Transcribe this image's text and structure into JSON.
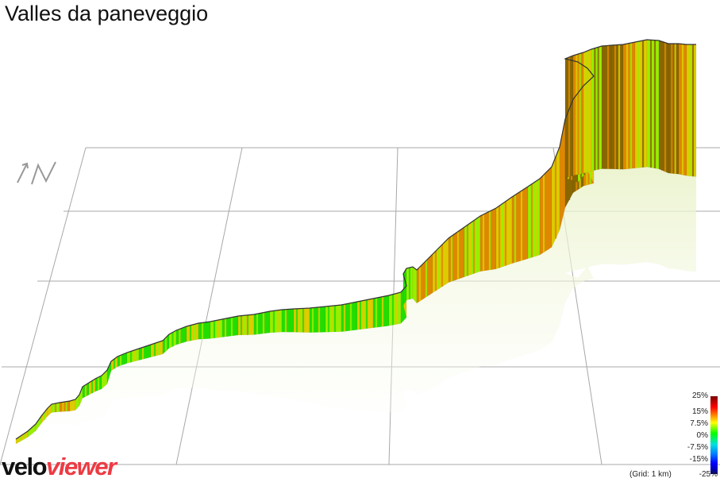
{
  "title": "Valles da paneveggio",
  "logo": {
    "part1": "velo",
    "part2": "viewer"
  },
  "gradient_scale": {
    "labels": [
      "25%",
      "15%",
      "7.5%",
      "0%",
      "-7.5%",
      "-15%",
      "-25%"
    ]
  },
  "grid_note": "(Grid: 1 km)",
  "colors": {
    "gentle": "#22dd00",
    "moderate": "#99ee00",
    "steep": "#ddcc00",
    "very_steep": "#dd8800",
    "extreme": "#886600",
    "brand_red": "#ee3a43"
  },
  "chart_data": {
    "type": "area",
    "title": "Valles da paneveggio",
    "gradient_range_percent": [
      -25,
      25
    ],
    "profile_description": "3D elevation profile, gradient-colored",
    "segments": [
      {
        "gradient_class": "moderate"
      },
      {
        "gradient_class": "steep"
      },
      {
        "gradient_class": "gentle"
      },
      {
        "gradient_class": "moderate"
      },
      {
        "gradient_class": "steep"
      },
      {
        "gradient_class": "very_steep"
      },
      {
        "gradient_class": "extreme"
      }
    ]
  }
}
